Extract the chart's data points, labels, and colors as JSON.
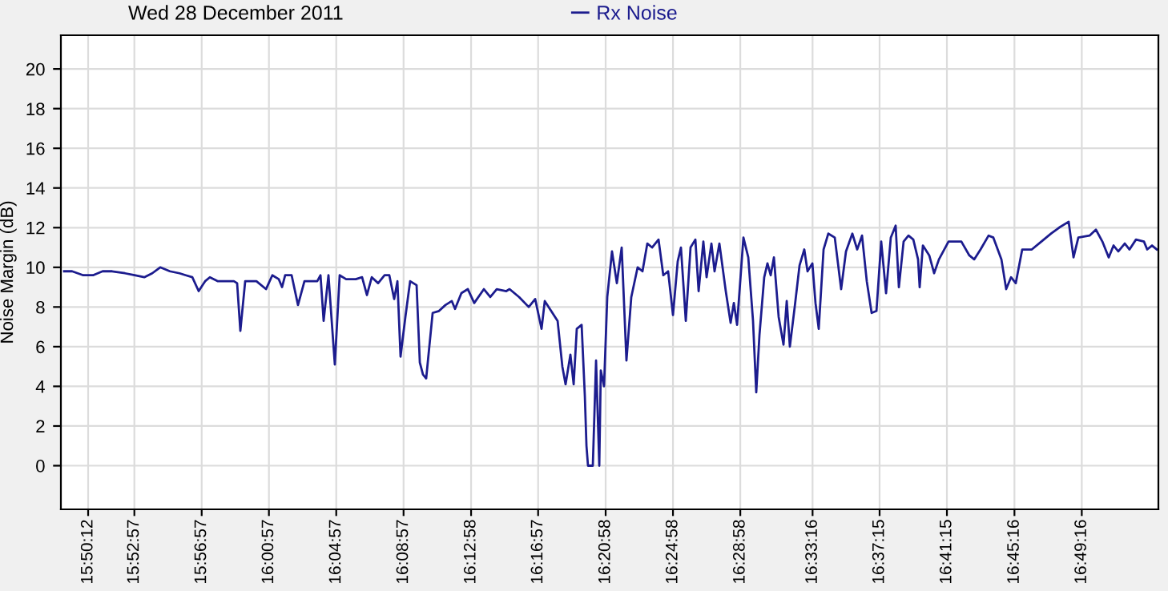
{
  "chart_data": {
    "type": "line",
    "title": "Wed 28 December 2011",
    "ylabel": "Noise Margin (dB)",
    "x": [
      15.8129,
      15.8208,
      15.8319,
      15.8415,
      15.851,
      15.8605,
      15.8732,
      15.8827,
      15.8923,
      15.9002,
      15.9081,
      15.9177,
      15.9272,
      15.9335,
      15.9399,
      15.9462,
      15.9526,
      15.9573,
      15.9653,
      15.9716,
      15.9811,
      15.9843,
      15.9875,
      15.9923,
      16.0034,
      16.0129,
      16.0192,
      16.0256,
      16.0288,
      16.0319,
      16.0383,
      16.0446,
      16.051,
      16.0637,
      16.0669,
      16.07,
      16.0748,
      16.078,
      16.0811,
      16.0859,
      16.0923,
      16.1018,
      16.1081,
      16.1129,
      16.1177,
      16.124,
      16.1304,
      16.1351,
      16.1399,
      16.1431,
      16.1462,
      16.151,
      16.1557,
      16.1621,
      16.1653,
      16.1684,
      16.1716,
      16.178,
      16.1843,
      16.1907,
      16.197,
      16.2002,
      16.2065,
      16.2129,
      16.2192,
      16.2288,
      16.2351,
      16.2415,
      16.251,
      16.2542,
      16.2637,
      16.2732,
      16.2796,
      16.2859,
      16.2891,
      16.2954,
      16.3018,
      16.3065,
      16.3097,
      16.3145,
      16.3177,
      16.3208,
      16.3256,
      16.3288,
      16.3304,
      16.3319,
      16.3335,
      16.3367,
      16.3399,
      16.3431,
      16.3446,
      16.3478,
      16.351,
      16.3557,
      16.3605,
      16.3653,
      16.37,
      16.3748,
      16.3811,
      16.3859,
      16.3907,
      16.3954,
      16.4018,
      16.4065,
      16.4113,
      16.4161,
      16.4208,
      16.424,
      16.4288,
      16.4335,
      16.4383,
      16.4415,
      16.4462,
      16.4494,
      16.4542,
      16.4573,
      16.4621,
      16.4684,
      16.4732,
      16.4764,
      16.4796,
      16.4859,
      16.4907,
      16.4954,
      16.4986,
      16.5018,
      16.5065,
      16.5097,
      16.5129,
      16.5161,
      16.5208,
      16.5256,
      16.5288,
      16.5319,
      16.5367,
      16.5415,
      16.5462,
      16.5494,
      16.5542,
      16.5573,
      16.5605,
      16.5653,
      16.57,
      16.5764,
      16.5827,
      16.5875,
      16.5938,
      16.5986,
      16.6034,
      16.6081,
      16.6129,
      16.6177,
      16.6224,
      16.6272,
      16.6319,
      16.6367,
      16.6399,
      16.6446,
      16.6494,
      16.6542,
      16.6589,
      16.6605,
      16.6637,
      16.67,
      16.6748,
      16.6796,
      16.6891,
      16.7018,
      16.7097,
      16.7145,
      16.7208,
      16.7288,
      16.7335,
      16.7415,
      16.7462,
      16.751,
      16.7557,
      16.7621,
      16.7716,
      16.7811,
      16.7907,
      16.7986,
      16.8081,
      16.8129,
      16.8177,
      16.8288,
      16.8351,
      16.8415,
      16.8478,
      16.8526,
      16.8573,
      16.8637,
      16.8684,
      16.8748,
      16.8827,
      16.8859,
      16.8907,
      16.8954
    ],
    "series": [
      {
        "name": "Rx Noise",
        "color": "#1c1c8e",
        "values": [
          9.8,
          9.8,
          9.6,
          9.6,
          9.8,
          9.8,
          9.7,
          9.6,
          9.5,
          9.7,
          10.0,
          9.8,
          9.7,
          9.6,
          9.5,
          8.8,
          9.3,
          9.5,
          9.3,
          9.3,
          9.3,
          9.2,
          6.8,
          9.3,
          9.3,
          8.9,
          9.6,
          9.4,
          9.0,
          9.6,
          9.6,
          8.1,
          9.3,
          9.3,
          9.6,
          7.3,
          9.6,
          7.3,
          5.1,
          9.6,
          9.4,
          9.4,
          9.5,
          8.6,
          9.5,
          9.2,
          9.6,
          9.6,
          8.4,
          9.3,
          5.5,
          7.5,
          9.3,
          9.1,
          5.2,
          4.6,
          4.4,
          7.7,
          7.8,
          8.1,
          8.3,
          7.9,
          8.7,
          8.9,
          8.2,
          8.9,
          8.5,
          8.9,
          8.8,
          8.9,
          8.5,
          8.0,
          8.4,
          6.9,
          8.3,
          7.8,
          7.3,
          5.0,
          4.1,
          5.6,
          4.1,
          6.9,
          7.1,
          3.5,
          1.0,
          0.0,
          0.0,
          0.0,
          5.3,
          0.0,
          4.8,
          4.0,
          8.5,
          10.8,
          9.2,
          11.0,
          5.3,
          8.5,
          10.0,
          9.8,
          11.2,
          11.0,
          11.4,
          9.6,
          9.8,
          7.6,
          10.3,
          11.0,
          7.3,
          11.0,
          11.4,
          8.8,
          11.3,
          9.5,
          11.2,
          9.8,
          11.2,
          8.8,
          7.2,
          8.2,
          7.1,
          11.5,
          10.5,
          7.3,
          3.7,
          6.6,
          9.5,
          10.2,
          9.6,
          10.5,
          7.5,
          6.1,
          8.3,
          6.0,
          8.0,
          10.1,
          10.9,
          9.8,
          10.2,
          8.2,
          6.9,
          10.9,
          11.7,
          11.5,
          8.9,
          10.8,
          11.7,
          10.9,
          11.6,
          9.3,
          7.7,
          7.8,
          11.3,
          8.7,
          11.5,
          12.1,
          9.0,
          11.3,
          11.6,
          11.4,
          10.4,
          9.0,
          11.1,
          10.6,
          9.7,
          10.4,
          11.3,
          11.3,
          10.6,
          10.4,
          10.9,
          11.6,
          11.5,
          10.4,
          8.9,
          9.5,
          9.2,
          10.9,
          10.9,
          11.3,
          11.7,
          12.0,
          12.3,
          10.5,
          11.5,
          11.6,
          11.9,
          11.3,
          10.5,
          11.1,
          10.8,
          11.2,
          10.9,
          11.4,
          11.3,
          10.9,
          11.1,
          10.9
        ]
      }
    ],
    "xlim": [
      15.8097,
      16.897
    ],
    "xticks": [
      {
        "value": 15.8367,
        "label": "15:50:12"
      },
      {
        "value": 15.8825,
        "label": "15:52:57"
      },
      {
        "value": 15.9492,
        "label": "15:56:57"
      },
      {
        "value": 16.0158,
        "label": "16:00:57"
      },
      {
        "value": 16.0825,
        "label": "16:04:57"
      },
      {
        "value": 16.1492,
        "label": "16:08:57"
      },
      {
        "value": 16.2161,
        "label": "16:12:58"
      },
      {
        "value": 16.2825,
        "label": "16:16:57"
      },
      {
        "value": 16.3494,
        "label": "16:20:58"
      },
      {
        "value": 16.4161,
        "label": "16:24:58"
      },
      {
        "value": 16.4828,
        "label": "16:28:58"
      },
      {
        "value": 16.5544,
        "label": "16:33:16"
      },
      {
        "value": 16.6208,
        "label": "16:37:15"
      },
      {
        "value": 16.6875,
        "label": "16:41:15"
      },
      {
        "value": 16.7544,
        "label": "16:45:16"
      },
      {
        "value": 16.8211,
        "label": "16:49:16"
      }
    ],
    "ylim": [
      -2.2,
      21.7
    ],
    "yticks": [
      0,
      2,
      4,
      6,
      8,
      10,
      12,
      14,
      16,
      18,
      20
    ],
    "grid": true,
    "legend": "top",
    "marker": "none",
    "line_style": "solid"
  }
}
